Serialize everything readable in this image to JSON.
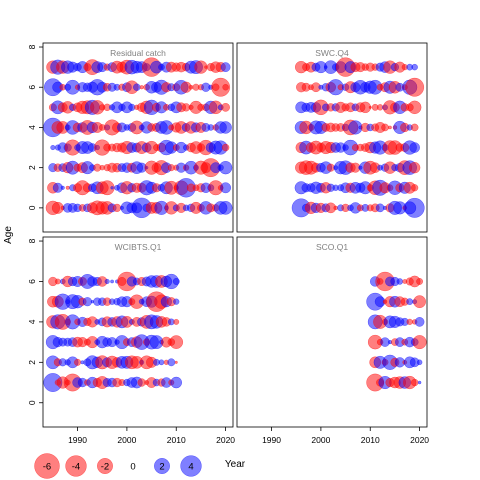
{
  "chart_data": {
    "type": "scatter",
    "subtype": "bubble-residual-grid",
    "xlabel": "Year",
    "ylabel": "Age",
    "xlim": [
      1983,
      2021.5
    ],
    "ylim": [
      -1.2,
      8.2
    ],
    "x_ticks": [
      1990,
      2000,
      2010,
      2020
    ],
    "y_ticks": [
      0,
      2,
      4,
      6,
      8
    ],
    "colors": {
      "negative": "#ff0000",
      "positive": "#0000ff",
      "fill_alpha": 0.5,
      "strip_text": "#808080"
    },
    "legend": {
      "placement": "bottom-left",
      "items": [
        {
          "label": "-6",
          "value": -6
        },
        {
          "label": "-4",
          "value": -4
        },
        {
          "label": "-2",
          "value": -2
        },
        {
          "label": "0",
          "value": 0
        },
        {
          "label": "2",
          "value": 2
        },
        {
          "label": "4",
          "value": 4
        }
      ]
    },
    "panels": [
      {
        "name": "Residual catch",
        "years": [
          1985,
          2020
        ],
        "ages": [
          0,
          1,
          2,
          3,
          4,
          5,
          6,
          7
        ],
        "highlights": [
          {
            "year": 1985,
            "age": 4,
            "value": 3.2
          },
          {
            "year": 1985,
            "age": 6,
            "value": 2.6
          },
          {
            "year": 2003,
            "age": 0,
            "value": 3.6
          },
          {
            "year": 2012,
            "age": 1,
            "value": 3.2
          },
          {
            "year": 2005,
            "age": 7,
            "value": -3.2
          },
          {
            "year": 2017,
            "age": 2,
            "value": -3.0
          },
          {
            "year": 2019,
            "age": 6,
            "value": -3.0
          }
        ]
      },
      {
        "name": "SWC.Q4",
        "years": [
          1996,
          2019
        ],
        "ages": [
          0,
          1,
          2,
          3,
          4,
          5,
          6,
          7
        ],
        "highlights": [
          {
            "year": 1996,
            "age": 0,
            "value": 3.0
          },
          {
            "year": 2019,
            "age": 0,
            "value": 3.4
          },
          {
            "year": 2005,
            "age": 7,
            "value": -3.2
          },
          {
            "year": 2019,
            "age": 6,
            "value": -3.0
          }
        ]
      },
      {
        "name": "WCIBTS.Q1",
        "years": [
          1985,
          2010
        ],
        "ages": [
          1,
          2,
          3,
          4,
          5,
          6
        ],
        "highlights": [
          {
            "year": 1985,
            "age": 1,
            "value": 3.0
          },
          {
            "year": 2000,
            "age": 6,
            "value": -3.2
          },
          {
            "year": 2006,
            "age": 5,
            "value": -3.6
          },
          {
            "year": 1989,
            "age": 1,
            "value": -2.6
          }
        ]
      },
      {
        "name": "SCO.Q1",
        "years": [
          2011,
          2020
        ],
        "ages": [
          1,
          2,
          3,
          4,
          5,
          6
        ],
        "highlights": [
          {
            "year": 2013,
            "age": 6,
            "value": -3.2
          },
          {
            "year": 2011,
            "age": 1,
            "value": -2.6
          },
          {
            "year": 2011,
            "age": 5,
            "value": 2.6
          }
        ]
      }
    ]
  }
}
